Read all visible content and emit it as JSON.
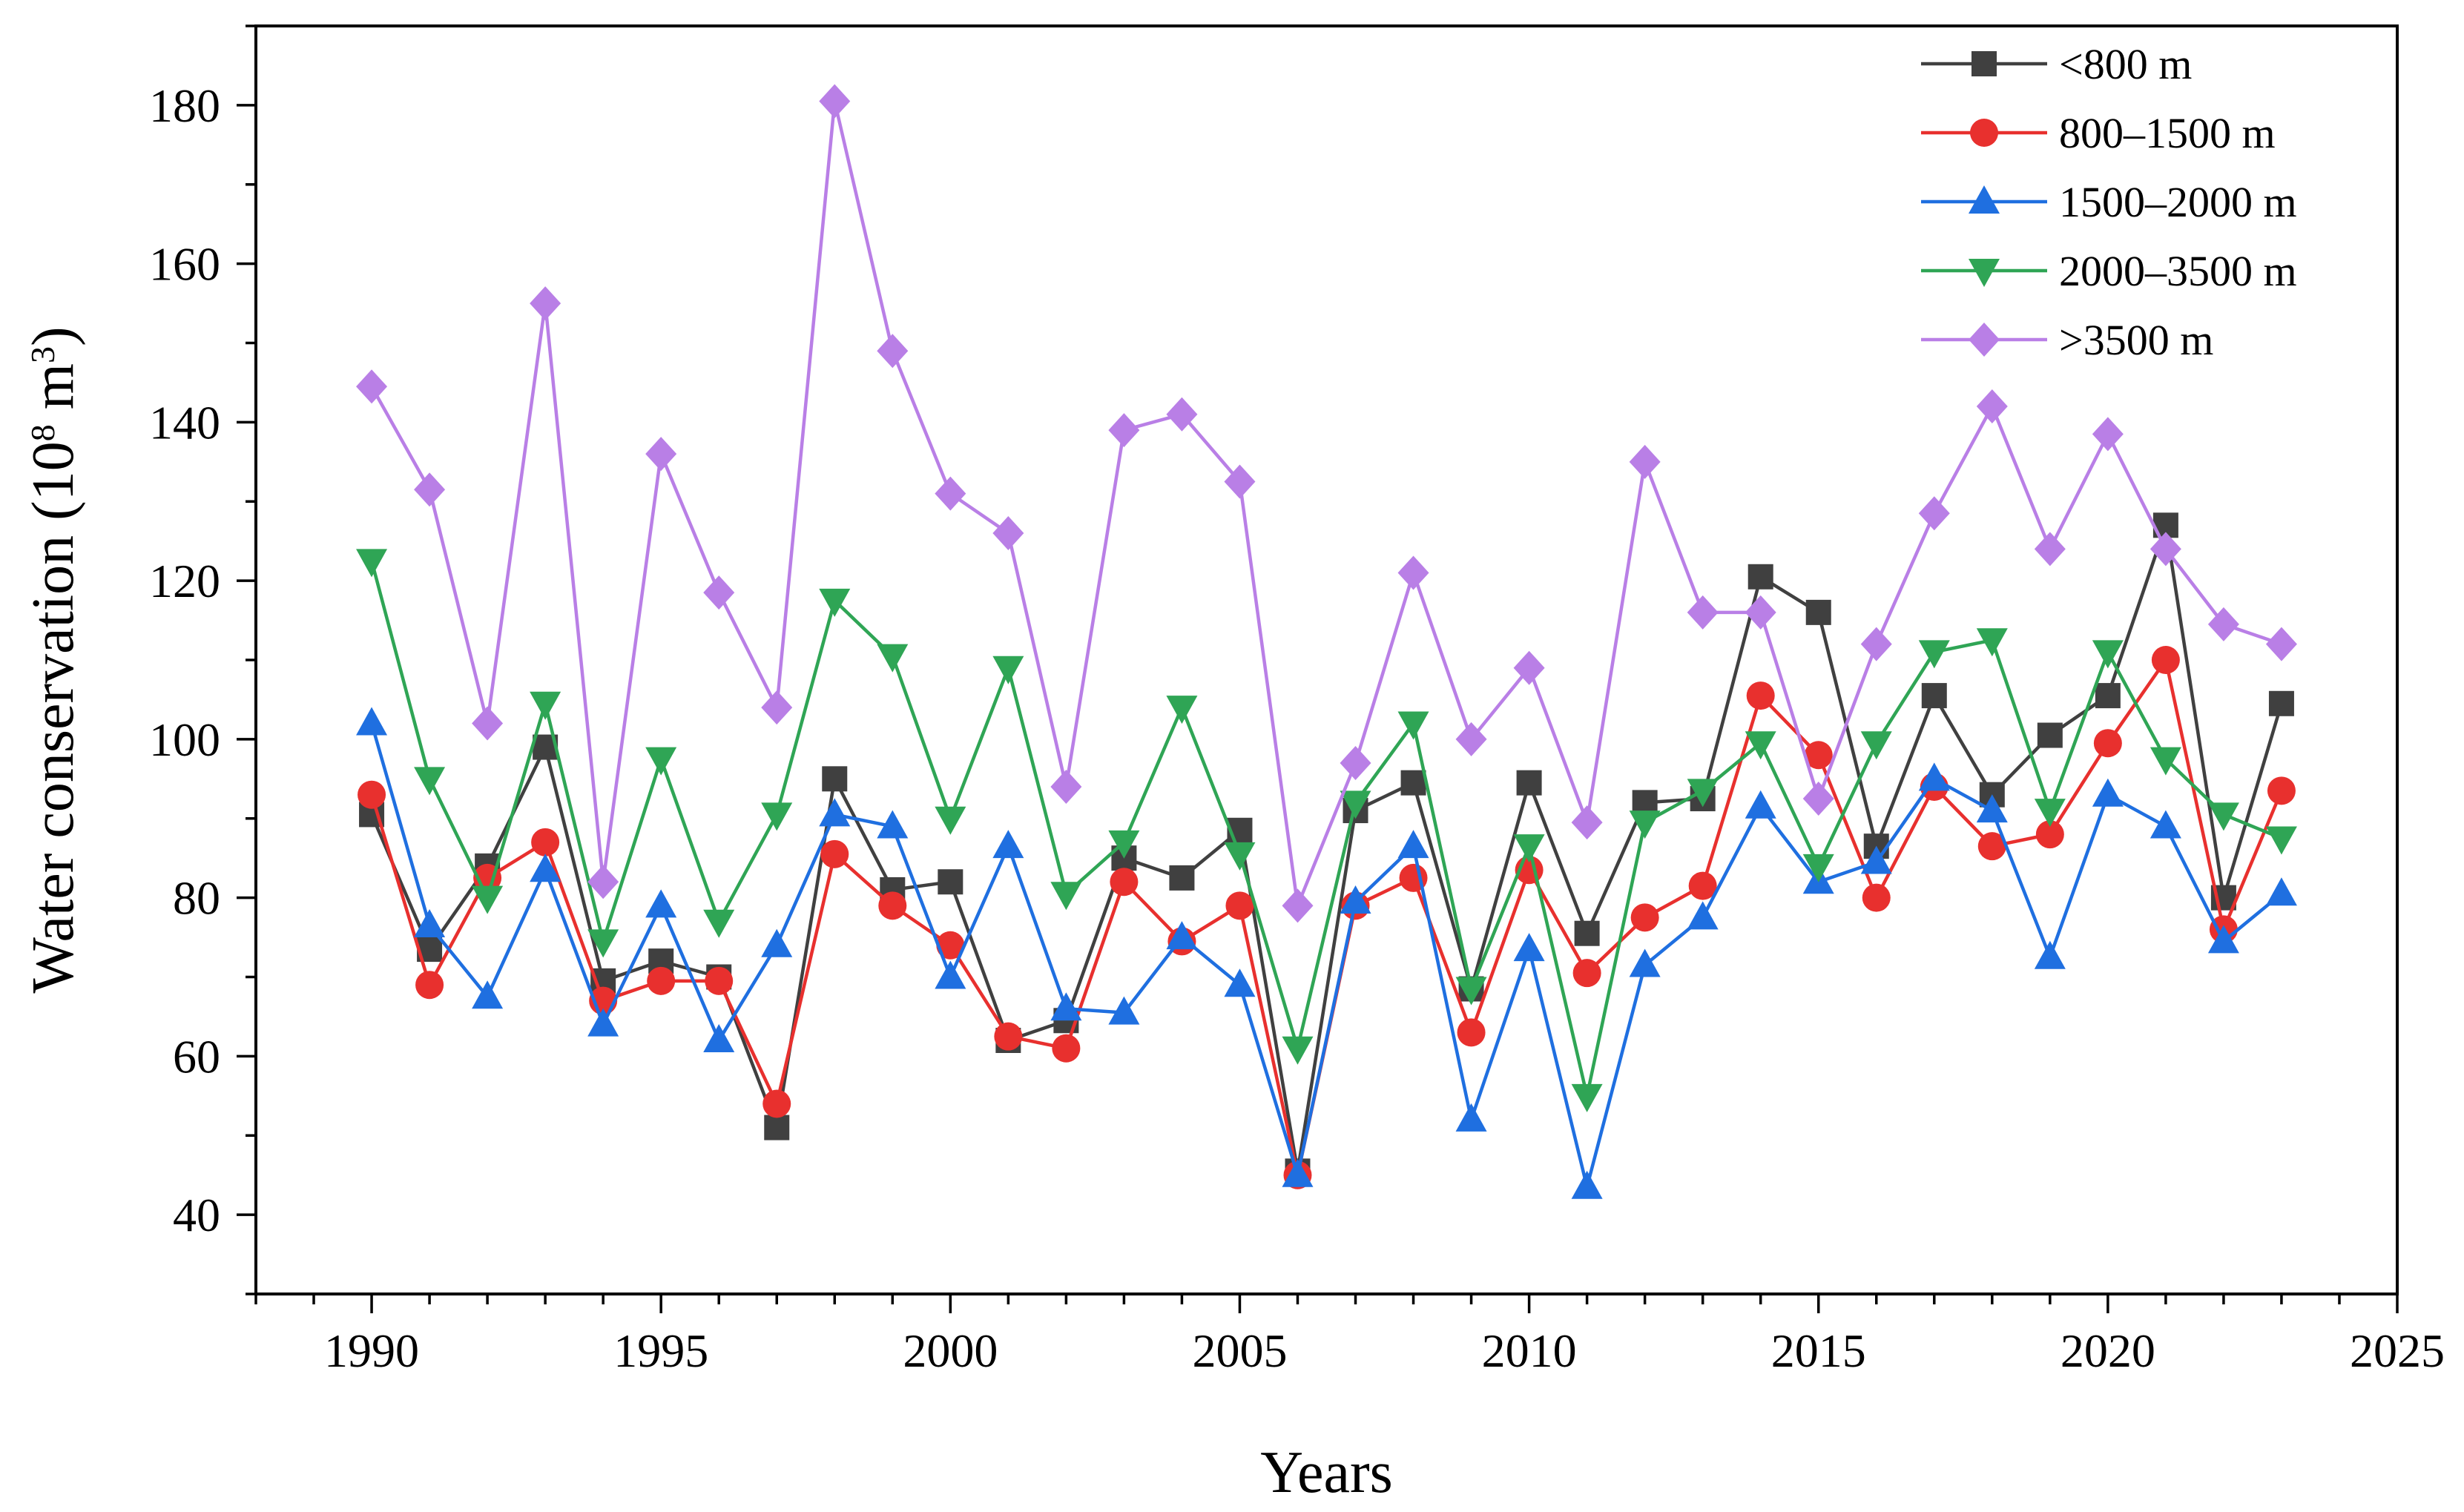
{
  "chart_data": {
    "type": "line",
    "title": "",
    "xlabel": "Years",
    "ylabel": {
      "prefix": "Water conservation (10",
      "exp": "8",
      "mid": " m",
      "exp2": "3",
      "suffix": ")"
    },
    "xlim": [
      1988,
      2025
    ],
    "ylim": [
      30,
      190
    ],
    "x_ticks": [
      1990,
      1995,
      2000,
      2005,
      2010,
      2015,
      2020,
      2025
    ],
    "x_tick_labels": [
      "1990",
      "1995",
      "2000",
      "2005",
      "2010",
      "2015",
      "2020",
      "2025"
    ],
    "y_ticks": [
      40,
      60,
      80,
      100,
      120,
      140,
      160,
      180
    ],
    "y_tick_labels": [
      "40",
      "60",
      "80",
      "100",
      "120",
      "140",
      "160",
      "180"
    ],
    "grid": false,
    "legend_position": "top-right",
    "x": [
      1990,
      1991,
      1992,
      1993,
      1994,
      1995,
      1996,
      1997,
      1998,
      1999,
      2000,
      2001,
      2002,
      2003,
      2004,
      2005,
      2006,
      2007,
      2008,
      2009,
      2010,
      2011,
      2012,
      2013,
      2014,
      2015,
      2016,
      2017,
      2018,
      2019,
      2020,
      2021,
      2022,
      2023
    ],
    "series": [
      {
        "name": "<800 m",
        "color": "#404040",
        "marker": "square",
        "values": [
          90.5,
          73.5,
          84,
          99,
          69.5,
          72,
          70,
          51,
          95,
          81,
          82,
          62,
          64.5,
          85,
          82.5,
          88.5,
          45.5,
          91,
          94.5,
          68.5,
          94.5,
          75.5,
          92,
          92.5,
          120.5,
          116,
          86.5,
          105.5,
          93,
          100.5,
          105.5,
          127,
          80,
          104.5
        ]
      },
      {
        "name": "800–1500 m",
        "color": "#e8302e",
        "marker": "circle",
        "values": [
          93,
          69,
          82.5,
          87,
          67,
          69.5,
          69.5,
          54,
          85.5,
          79,
          74,
          62.5,
          61,
          82,
          74.5,
          79,
          45,
          79,
          82.5,
          63,
          83.5,
          70.5,
          77.5,
          81.5,
          105.5,
          98,
          80,
          94,
          86.5,
          88,
          99.5,
          110,
          76,
          93.5
        ]
      },
      {
        "name": "1500–2000 m",
        "color": "#1f6fe0",
        "marker": "triangle-up",
        "values": [
          102,
          76.5,
          67.5,
          83.5,
          64,
          79,
          62,
          74,
          90.5,
          89,
          70,
          86.5,
          66,
          65.5,
          75,
          69,
          45,
          79.5,
          86.5,
          52,
          73.5,
          43.5,
          71.5,
          77.5,
          91.5,
          82,
          84.5,
          95,
          91,
          72.5,
          93,
          89,
          74.5,
          80.5
        ]
      },
      {
        "name": "2000–3500 m",
        "color": "#2fa555",
        "marker": "triangle-down",
        "values": [
          122.5,
          95,
          80,
          104.5,
          74.5,
          97.5,
          77,
          90.5,
          117.5,
          110.5,
          90,
          109,
          80.5,
          87,
          104,
          85.5,
          61,
          92,
          102,
          68.5,
          86.5,
          55,
          89.5,
          93.5,
          99.5,
          84,
          99.5,
          111,
          112.5,
          91,
          111,
          97.5,
          90.5,
          87.5
        ]
      },
      {
        "name": ">3500 m",
        "color": "#b97fe6",
        "marker": "diamond",
        "values": [
          144.5,
          131.5,
          102,
          155,
          82,
          136,
          118.5,
          104,
          180.5,
          149,
          131,
          126,
          94,
          139,
          141,
          132.5,
          79,
          97,
          121,
          100,
          109,
          89.5,
          135,
          116,
          116,
          92.5,
          112,
          128.5,
          142,
          124,
          138.5,
          124,
          114.5,
          112
        ]
      }
    ]
  }
}
